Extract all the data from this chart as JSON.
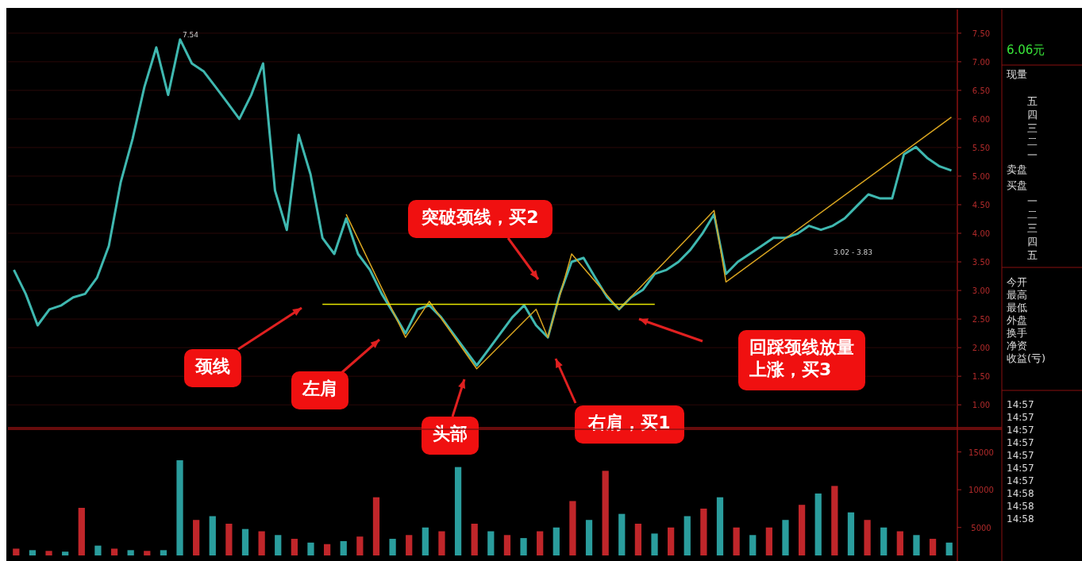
{
  "chart_data": [
    {
      "type": "line",
      "categories": [
        null,
        null,
        null,
        null,
        null,
        null,
        null,
        null,
        null,
        null,
        null,
        null,
        null,
        null,
        null,
        null,
        null,
        null,
        null,
        null,
        null,
        null,
        null,
        null,
        null,
        null,
        null,
        null,
        null,
        null,
        null,
        null,
        null,
        null,
        null,
        null,
        null,
        null,
        null,
        null,
        null,
        null,
        null,
        null,
        null,
        null,
        null,
        null,
        null,
        null,
        null,
        null,
        null,
        null,
        null,
        null,
        null,
        null,
        null,
        null,
        null,
        null,
        null,
        null,
        null,
        null,
        null,
        null,
        null,
        null,
        null,
        null,
        null,
        null,
        null,
        null,
        null,
        null,
        null,
        null
      ],
      "series": [
        {
          "color": "#3fb8b0",
          "values": [
            3.36,
            2.94,
            2.39,
            2.67,
            2.74,
            2.88,
            2.94,
            3.22,
            3.78,
            4.89,
            5.65,
            6.56,
            7.25,
            6.42,
            7.39,
            6.97,
            6.83,
            6.56,
            6.28,
            6.0,
            6.42,
            6.97,
            4.75,
            4.06,
            5.72,
            5.03,
            3.92,
            3.64,
            4.26,
            3.64,
            3.36,
            2.94,
            2.6,
            2.25,
            2.67,
            2.74,
            2.53,
            2.25,
            1.97,
            1.69,
            1.97,
            2.25,
            2.53,
            2.74,
            2.39,
            2.18,
            2.94,
            3.5,
            3.57,
            3.22,
            2.88,
            2.67,
            2.88,
            3.01,
            3.29,
            3.36,
            3.5,
            3.71,
            3.99,
            4.33,
            3.29,
            3.5,
            3.64,
            3.78,
            3.92,
            3.92,
            3.99,
            4.13,
            4.06,
            4.13,
            4.26,
            4.47,
            4.68,
            4.61,
            4.61,
            5.38,
            5.51,
            5.31,
            5.17,
            5.1
          ]
        },
        {
          "type": "line",
          "color": "#d9a520",
          "values": [
            null,
            null,
            null,
            null,
            null,
            null,
            null,
            null,
            null,
            null,
            null,
            null,
            null,
            null,
            null,
            null,
            null,
            null,
            null,
            null,
            null,
            null,
            null,
            null,
            null,
            null,
            null,
            null,
            4.33,
            null,
            null,
            null,
            null,
            2.18,
            null,
            2.81,
            null,
            null,
            null,
            1.63,
            null,
            null,
            null,
            null,
            2.67,
            2.18,
            null,
            3.64,
            null,
            null,
            null,
            2.67,
            null,
            null,
            null,
            null,
            null,
            null,
            null,
            4.4,
            3.15,
            null,
            null,
            null,
            null,
            null,
            null,
            null,
            null,
            null,
            null,
            null,
            null,
            null,
            null,
            null,
            null,
            null,
            null,
            6.03
          ]
        },
        {
          "type": "line",
          "color": "#e8e800",
          "values": [
            null,
            null,
            null,
            null,
            null,
            null,
            null,
            null,
            null,
            null,
            null,
            null,
            null,
            null,
            null,
            null,
            null,
            null,
            null,
            null,
            null,
            null,
            null,
            null,
            null,
            null,
            2.76,
            null,
            null,
            null,
            null,
            null,
            null,
            null,
            null,
            null,
            null,
            null,
            null,
            null,
            null,
            null,
            null,
            null,
            null,
            null,
            null,
            null,
            null,
            null,
            null,
            null,
            null,
            null,
            2.76,
            null,
            null,
            null,
            null,
            null,
            null,
            null,
            null,
            null,
            null,
            null,
            null,
            null,
            null,
            null,
            null,
            null,
            null,
            null,
            null,
            null,
            null,
            null,
            null,
            null
          ]
        }
      ],
      "ylim": [
        0.6,
        7.9
      ],
      "yticks": [
        {
          "value": 1,
          "label": "1.00"
        },
        {
          "value": 1.5,
          "label": "1.50"
        },
        {
          "value": 2,
          "label": "2.00"
        },
        {
          "value": 2.5,
          "label": "2.50"
        },
        {
          "value": 3,
          "label": "3.00"
        },
        {
          "value": 3.5,
          "label": "3.50"
        },
        {
          "value": 4,
          "label": "4.00"
        },
        {
          "value": 4.5,
          "label": "4.50"
        },
        {
          "value": 5,
          "label": "5.00"
        },
        {
          "value": 5.5,
          "label": "5.50"
        },
        {
          "value": 6,
          "label": "6.00"
        },
        {
          "value": 6.5,
          "label": "6.50"
        },
        {
          "value": 7,
          "label": "7.00"
        },
        {
          "value": 7.5,
          "label": "7.50"
        }
      ],
      "grid": "y",
      "tick_labels": "y",
      "annotations": [
        "7.54",
        "3.02 - 3.83",
        "颈线",
        "左肩",
        "头部",
        "右肩，买1",
        "突破颈线，买2",
        "回踩颈线放量上涨，买3"
      ]
    },
    {
      "type": "bar",
      "categories": [
        null,
        null,
        null,
        null,
        null,
        null,
        null,
        null,
        null,
        null,
        null,
        null,
        null,
        null,
        null,
        null,
        null,
        null,
        null,
        null,
        null,
        null,
        null,
        null,
        null,
        null,
        null,
        null,
        null,
        null,
        null,
        null,
        null,
        null,
        null,
        null,
        null,
        null,
        null,
        null,
        null,
        null,
        null,
        null,
        null,
        null,
        null,
        null,
        null,
        null,
        null,
        null,
        null,
        null,
        null,
        null,
        null,
        null
      ],
      "values": [
        2200,
        2000,
        1900,
        1800,
        7600,
        2600,
        2200,
        2000,
        1900,
        2000,
        13900,
        6000,
        6500,
        5500,
        4800,
        4500,
        4000,
        3500,
        3000,
        2800,
        3200,
        3800,
        9000,
        3500,
        4000,
        5000,
        4500,
        13000,
        5500,
        4500,
        4000,
        3600,
        4500,
        5000,
        8500,
        6000,
        12500,
        6800,
        5500,
        4200,
        5000,
        6500,
        7500,
        9000,
        5000,
        4000,
        5000,
        6000,
        8000,
        9500,
        10500,
        7000,
        6000,
        5000,
        4500,
        4000,
        3500,
        3000
      ],
      "colors": [
        "#c0262a",
        "#2a9d9d",
        "#c0262a",
        "#2a9d9d",
        "#c0262a",
        "#2a9d9d",
        "#c0262a",
        "#2a9d9d",
        "#c0262a",
        "#2a9d9d",
        "#2a9d9d",
        "#c0262a",
        "#2a9d9d",
        "#c0262a",
        "#2a9d9d",
        "#c0262a",
        "#2a9d9d",
        "#c0262a",
        "#2a9d9d",
        "#c0262a",
        "#2a9d9d",
        "#c0262a",
        "#c0262a",
        "#2a9d9d",
        "#c0262a",
        "#2a9d9d",
        "#c0262a",
        "#2a9d9d",
        "#c0262a",
        "#2a9d9d",
        "#c0262a",
        "#2a9d9d",
        "#c0262a",
        "#2a9d9d",
        "#c0262a",
        "#2a9d9d",
        "#c0262a",
        "#2a9d9d",
        "#c0262a",
        "#2a9d9d",
        "#c0262a",
        "#2a9d9d",
        "#c0262a",
        "#2a9d9d",
        "#c0262a",
        "#2a9d9d",
        "#c0262a",
        "#2a9d9d",
        "#c0262a",
        "#2a9d9d",
        "#c0262a",
        "#2a9d9d",
        "#c0262a",
        "#2a9d9d",
        "#c0262a",
        "#2a9d9d",
        "#c0262a",
        "#2a9d9d"
      ],
      "ylim": [
        1300,
        18000
      ],
      "yticks": [
        5000,
        10000,
        15000
      ],
      "tick_labels": "y"
    },
    {
      "type": "other",
      "annotations": [
        "6.06元",
        "现量",
        "五",
        "四",
        "三",
        "二",
        "一",
        "卖盘",
        "买盘",
        "一",
        "二",
        "三",
        "四",
        "五",
        "今开",
        "最高",
        "最低",
        "外盘",
        "换手",
        "净资",
        "收益(亏)",
        "14:57",
        "14:57",
        "14:57",
        "14:57",
        "14:57",
        "14:57",
        "14:57",
        "14:58",
        "14:58",
        "14:58"
      ]
    }
  ]
}
